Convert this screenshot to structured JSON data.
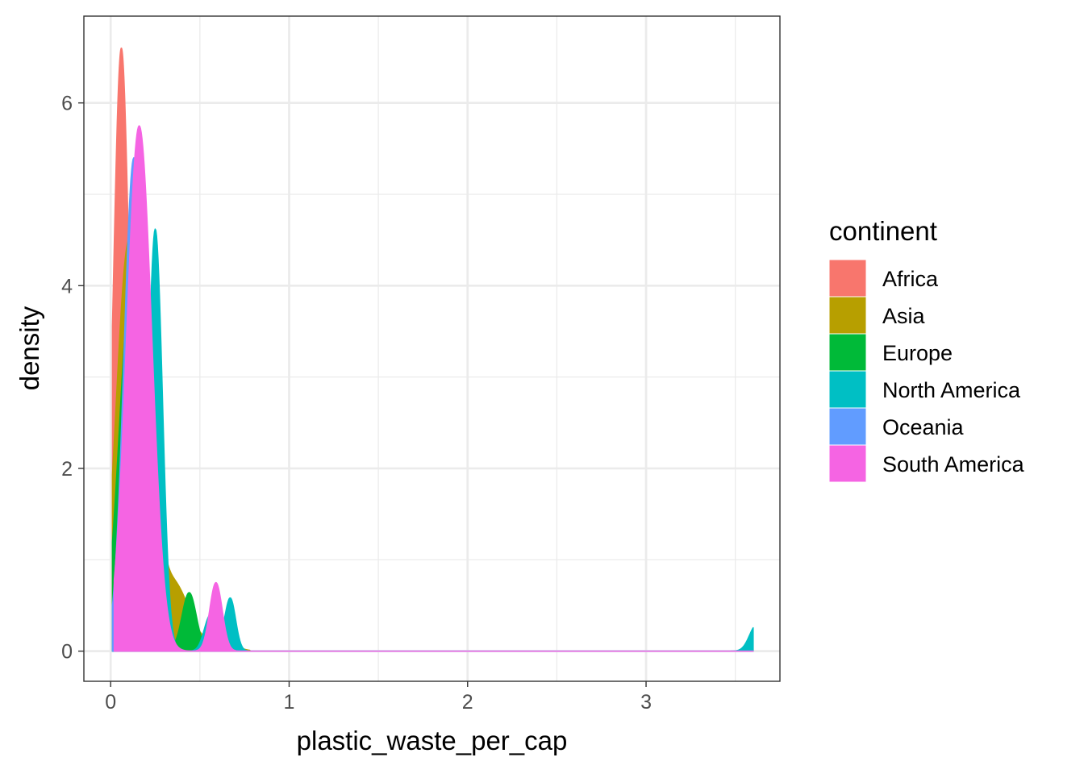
{
  "chart_data": {
    "type": "area",
    "subtype": "density",
    "title": "",
    "xlabel": "plastic_waste_per_cap",
    "ylabel": "density",
    "xlim": [
      -0.15,
      3.75
    ],
    "ylim": [
      -0.33,
      6.95
    ],
    "x_ticks": [
      0,
      1,
      2,
      3
    ],
    "x_tick_labels": [
      "0",
      "1",
      "2",
      "3"
    ],
    "y_ticks": [
      0,
      2,
      4,
      6
    ],
    "y_tick_labels": [
      "0",
      "2",
      "4",
      "6"
    ],
    "grid": true,
    "legend": {
      "title": "continent",
      "position": "right"
    },
    "series": [
      {
        "name": "Africa",
        "color": "#F8766D",
        "peaks": [
          {
            "mu": 0.06,
            "sigma": 0.045,
            "h": 6.6
          }
        ],
        "x_start": 0.01,
        "x_end": 0.42
      },
      {
        "name": "Asia",
        "color": "#B79F00",
        "peaks": [
          {
            "mu": 0.1,
            "sigma": 0.07,
            "h": 4.4
          },
          {
            "mu": 0.22,
            "sigma": 0.05,
            "h": 1.6
          },
          {
            "mu": 0.35,
            "sigma": 0.09,
            "h": 0.75
          },
          {
            "mu": 0.62,
            "sigma": 0.07,
            "h": 0.12
          }
        ],
        "x_start": 0.01,
        "x_end": 0.78
      },
      {
        "name": "Europe",
        "color": "#00BA38",
        "peaks": [
          {
            "mu": 0.12,
            "sigma": 0.07,
            "h": 4.1
          },
          {
            "mu": 0.44,
            "sigma": 0.04,
            "h": 0.64
          }
        ],
        "x_start": 0.01,
        "x_end": 0.55
      },
      {
        "name": "North America",
        "color": "#00BFC4",
        "peaks": [
          {
            "mu": 0.25,
            "sigma": 0.04,
            "h": 4.62
          },
          {
            "mu": 0.56,
            "sigma": 0.035,
            "h": 0.4
          },
          {
            "mu": 0.67,
            "sigma": 0.03,
            "h": 0.58
          },
          {
            "mu": 3.62,
            "sigma": 0.04,
            "h": 0.29
          }
        ],
        "x_start": 0.01,
        "x_end": 3.6
      },
      {
        "name": "Oceania",
        "color": "#619CFF",
        "peaks": [
          {
            "mu": 0.13,
            "sigma": 0.055,
            "h": 5.4
          }
        ],
        "x_start": 0.01,
        "x_end": 3.6
      },
      {
        "name": "South America",
        "color": "#F564E3",
        "peaks": [
          {
            "mu": 0.16,
            "sigma": 0.07,
            "h": 5.75
          },
          {
            "mu": 0.59,
            "sigma": 0.035,
            "h": 0.75
          }
        ],
        "x_start": 0.02,
        "x_end": 3.6
      }
    ]
  }
}
